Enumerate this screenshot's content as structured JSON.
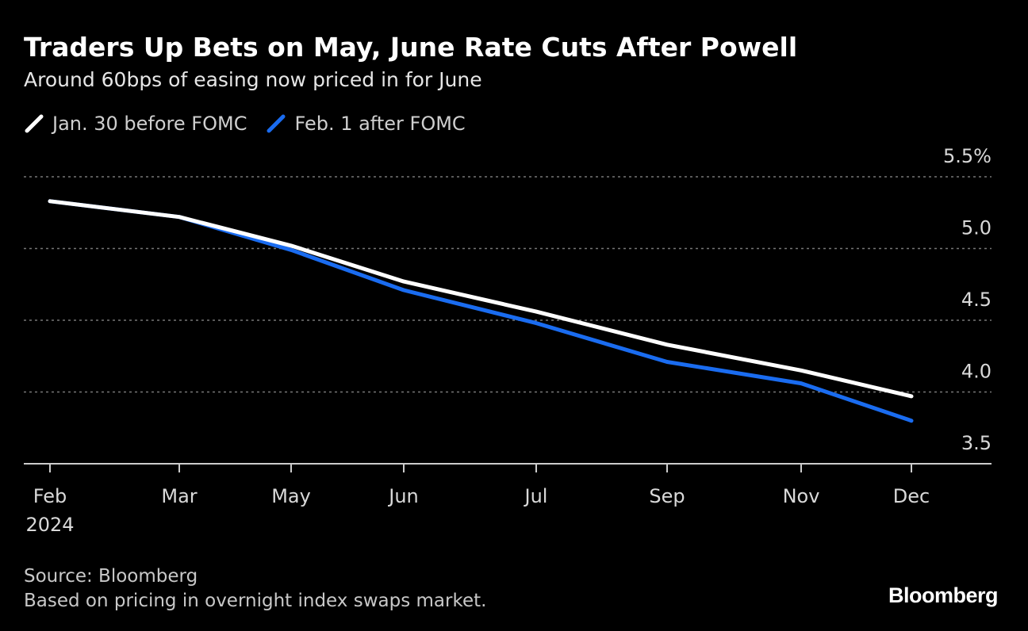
{
  "title": "Traders Up Bets on May, June Rate Cuts After Powell",
  "subtitle": "Around 60bps of easing now priced in for June",
  "footer": {
    "source": "Source: Bloomberg",
    "note": "Based on pricing in overnight index swaps market."
  },
  "brand": "Bloomberg",
  "colors": {
    "background": "#000000",
    "series_before": "#ffffff",
    "series_after": "#1a6cf0",
    "grid": "#777777",
    "axis_text": "#d9d9d9"
  },
  "chart_data": {
    "type": "line",
    "title": "Traders Up Bets on May, June Rate Cuts After Powell",
    "subtitle": "Around 60bps of easing now priced in for June",
    "xlabel": "",
    "ylabel": "",
    "x_labels": [
      "Feb",
      "Mar",
      "May",
      "Jun",
      "Jul",
      "Sep",
      "Nov",
      "Dec"
    ],
    "x_sublabel": "2024",
    "y_ticks": [
      "5.5%",
      "5.0",
      "4.5",
      "4.0",
      "3.5"
    ],
    "y_tick_values": [
      5.5,
      5.0,
      4.5,
      4.0,
      3.5
    ],
    "ylim": [
      3.5,
      5.5
    ],
    "grid": true,
    "legend": "top-left",
    "series": [
      {
        "name": "Jan. 30 before FOMC",
        "color": "#ffffff",
        "values": [
          5.33,
          5.22,
          5.02,
          4.77,
          4.56,
          4.33,
          4.15,
          3.97
        ]
      },
      {
        "name": "Feb. 1 after FOMC",
        "color": "#1a6cf0",
        "values": [
          5.33,
          5.22,
          4.99,
          4.71,
          4.48,
          4.21,
          4.06,
          3.8
        ]
      }
    ]
  }
}
